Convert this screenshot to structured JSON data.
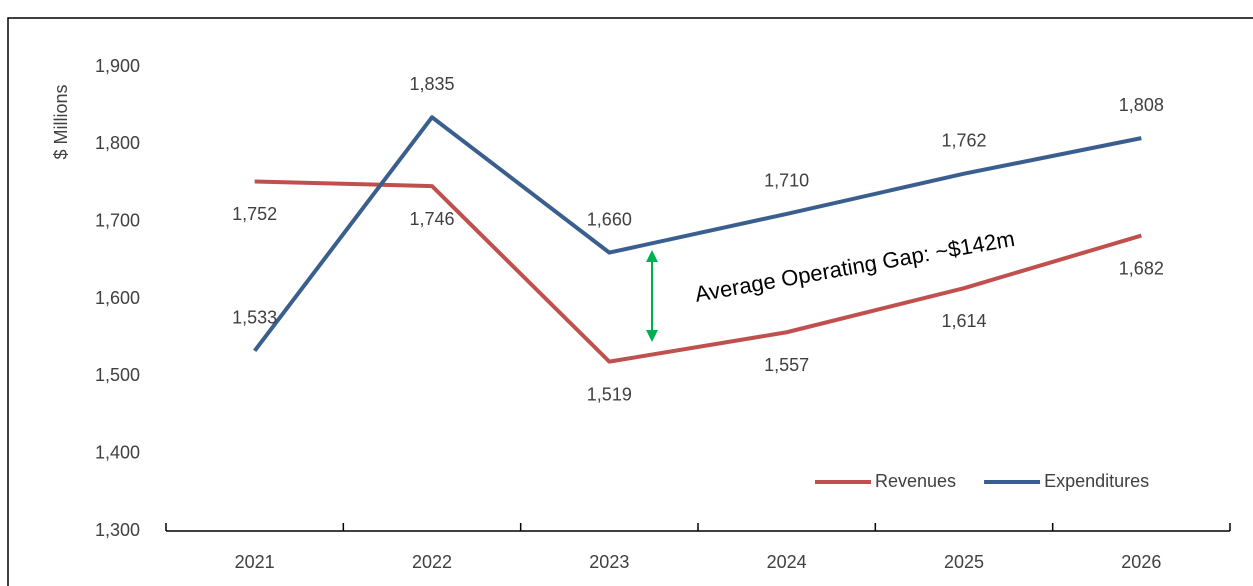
{
  "chart_data": {
    "type": "line",
    "ylabel": "$ Millions",
    "categories": [
      "2021",
      "2022",
      "2023",
      "2024",
      "2025",
      "2026"
    ],
    "series": [
      {
        "name": "Revenues",
        "color": "#c0504d",
        "values": [
          1752,
          1746,
          1519,
          1557,
          1614,
          1682
        ],
        "value_labels": [
          "1,752",
          "1,746",
          "1,519",
          "1,557",
          "1,614",
          "1,682"
        ]
      },
      {
        "name": "Expenditures",
        "color": "#3a5f8f",
        "values": [
          1533,
          1835,
          1660,
          1710,
          1762,
          1808
        ],
        "value_labels": [
          "1,533",
          "1,835",
          "1,660",
          "1,710",
          "1,762",
          "1,808"
        ]
      }
    ],
    "ylim": [
      1300,
      1900
    ],
    "yticks": [
      {
        "value": 1300,
        "label": "1,300"
      },
      {
        "value": 1400,
        "label": "1,400"
      },
      {
        "value": 1500,
        "label": "1,500"
      },
      {
        "value": 1600,
        "label": "1,600"
      },
      {
        "value": 1700,
        "label": "1,700"
      },
      {
        "value": 1800,
        "label": "1,800"
      },
      {
        "value": 1900,
        "label": "1,900"
      }
    ],
    "annotation": "Average Operating Gap: ~$142m",
    "legend": "bottom-right",
    "grid": false
  }
}
